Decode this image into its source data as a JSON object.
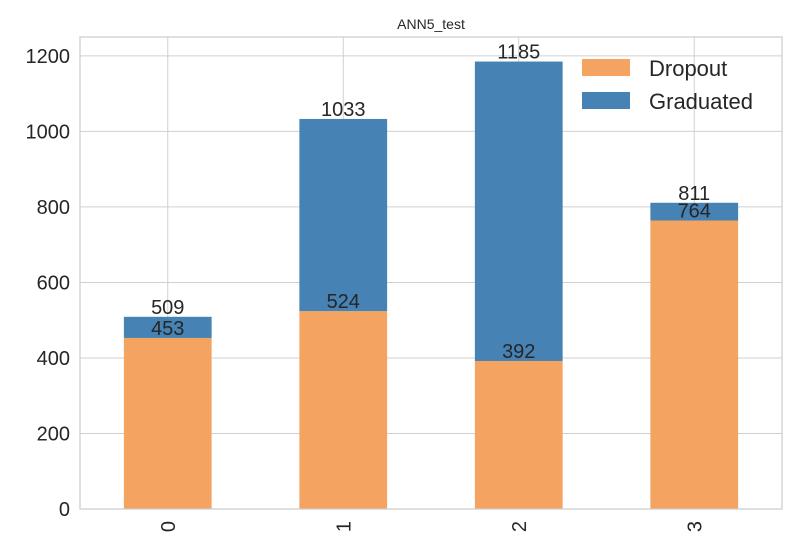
{
  "chart_data": {
    "type": "bar",
    "stacked": true,
    "title": "ANN5_test",
    "xlabel": "",
    "ylabel": "",
    "categories": [
      "0",
      "1",
      "2",
      "3"
    ],
    "ylim": [
      0,
      1250
    ],
    "yticks": [
      0,
      200,
      400,
      600,
      800,
      1000,
      1200
    ],
    "grid": true,
    "legend_position": "top-right",
    "series": [
      {
        "name": "Dropout",
        "color": "#f4a460",
        "values": [
          453,
          524,
          392,
          764
        ]
      },
      {
        "name": "Graduated",
        "color": "#4682b4",
        "values": [
          56,
          509,
          793,
          47
        ]
      }
    ],
    "data_labels": {
      "Dropout": [
        "453",
        "524",
        "392",
        "764"
      ],
      "Graduated": [
        "509",
        "1033",
        "1185",
        "811"
      ]
    }
  }
}
